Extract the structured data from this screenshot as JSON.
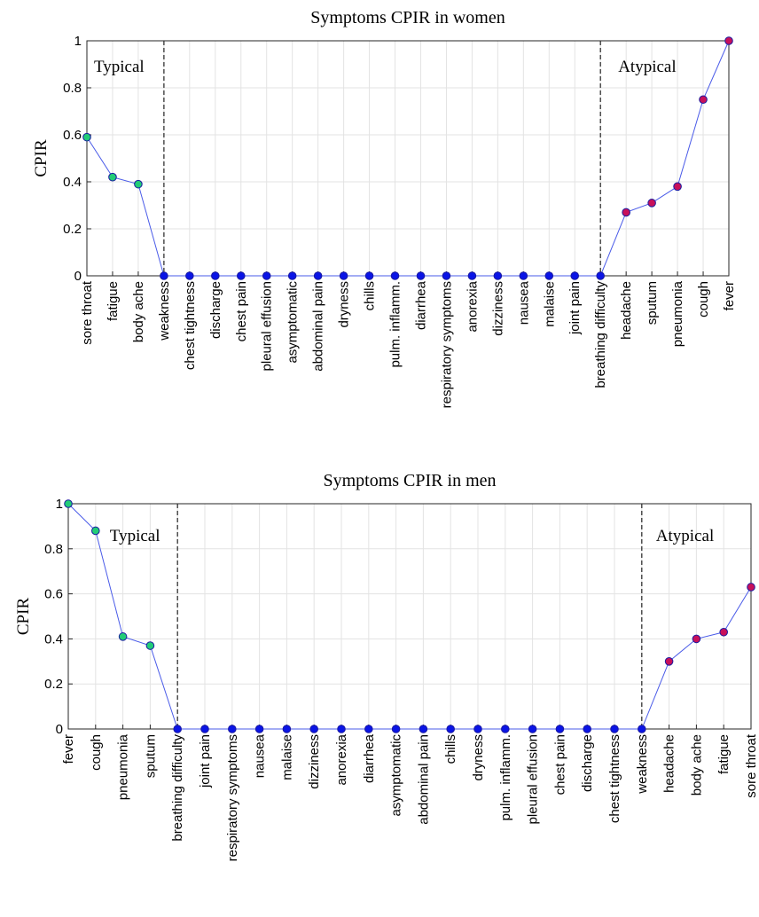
{
  "chart_data": [
    {
      "type": "line",
      "title": "Symptoms CPIR in women",
      "ylabel": "CPIR",
      "xlabel": "",
      "ylim": [
        0,
        1
      ],
      "yticks": [
        "0",
        "0.2",
        "0.4",
        "0.6",
        "0.8",
        "1"
      ],
      "grid": true,
      "categories": [
        "sore throat",
        "fatigue",
        "body ache",
        "weakness",
        "chest tightness",
        "discharge",
        "chest pain",
        "pleural effusion",
        "asymptomatic",
        "abdominal pain",
        "dryness",
        "chills",
        "pulm. inflamm.",
        "diarrhea",
        "respiratory symptoms",
        "anorexia",
        "dizziness",
        "nausea",
        "malaise",
        "joint pain",
        "breathing difficulty",
        "headache",
        "sputum",
        "pneumonia",
        "cough",
        "fever"
      ],
      "values": [
        0.59,
        0.42,
        0.39,
        0,
        0,
        0,
        0,
        0,
        0,
        0,
        0,
        0,
        0,
        0,
        0,
        0,
        0,
        0,
        0,
        0,
        0,
        0.27,
        0.31,
        0.38,
        0.75,
        1.0
      ],
      "typical_label": "Typical",
      "atypical_label": "Atypical",
      "typical_boundary_index": 3,
      "atypical_boundary_index": 20,
      "colors": {
        "line": "#4a5be8",
        "zero_marker": "#0a14e6",
        "typical_marker": "#22cc77",
        "atypical_marker": "#c8105a",
        "marker_edge": "#1a1aa0",
        "divider": "#333333",
        "grid": "#e3e3e3"
      }
    },
    {
      "type": "line",
      "title": "Symptoms CPIR in men",
      "ylabel": "CPIR",
      "xlabel": "",
      "ylim": [
        0,
        1
      ],
      "yticks": [
        "0",
        "0.2",
        "0.4",
        "0.6",
        "0.8",
        "1"
      ],
      "grid": true,
      "categories": [
        "fever",
        "cough",
        "pneumonia",
        "sputum",
        "breathing difficulty",
        "joint pain",
        "respiratory symptoms",
        "nausea",
        "malaise",
        "dizziness",
        "anorexia",
        "diarrhea",
        "asymptomatic",
        "abdominal pain",
        "chills",
        "dryness",
        "pulm. inflamm.",
        "pleural effusion",
        "chest pain",
        "discharge",
        "chest tightness",
        "weakness",
        "headache",
        "body ache",
        "fatigue",
        "sore throat"
      ],
      "values": [
        1.0,
        0.88,
        0.41,
        0.37,
        0,
        0,
        0,
        0,
        0,
        0,
        0,
        0,
        0,
        0,
        0,
        0,
        0,
        0,
        0,
        0,
        0,
        0,
        0.3,
        0.4,
        0.43,
        0.63
      ],
      "typical_label": "Typical",
      "atypical_label": "Atypical",
      "typical_boundary_index": 4,
      "atypical_boundary_index": 21,
      "colors": {
        "line": "#4a5be8",
        "zero_marker": "#0a14e6",
        "typical_marker": "#22cc77",
        "atypical_marker": "#c8105a",
        "marker_edge": "#1a1aa0",
        "divider": "#333333",
        "grid": "#e3e3e3"
      }
    }
  ]
}
